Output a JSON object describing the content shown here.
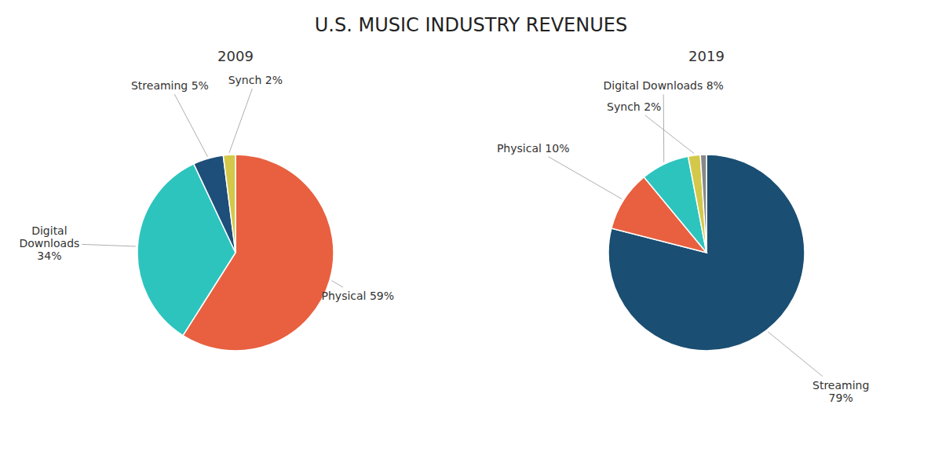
{
  "title": "U.S. MUSIC INDUSTRY REVENUES",
  "chart_data": [
    {
      "type": "pie",
      "title": "2009",
      "values": [
        59,
        34,
        5,
        2
      ],
      "colors": [
        "#E86040",
        "#2DC4BE",
        "#1E4E7A",
        "#D4C84A"
      ],
      "data_labels": true,
      "value_labels": [
        "Physical 59%",
        "Digital\nDownloads\n34%",
        "Streaming 5%",
        "Synch 2%"
      ]
    },
    {
      "type": "pie",
      "title": "2019",
      "values": [
        79,
        10,
        8,
        2,
        1
      ],
      "colors": [
        "#1A4E72",
        "#E86040",
        "#2DC4BE",
        "#D4C84A",
        "#888888"
      ],
      "data_labels": true,
      "value_labels": [
        "Streaming\n79%",
        "Physical 10%",
        "Digital Downloads 8%",
        "Synch 2%",
        null
      ]
    }
  ]
}
